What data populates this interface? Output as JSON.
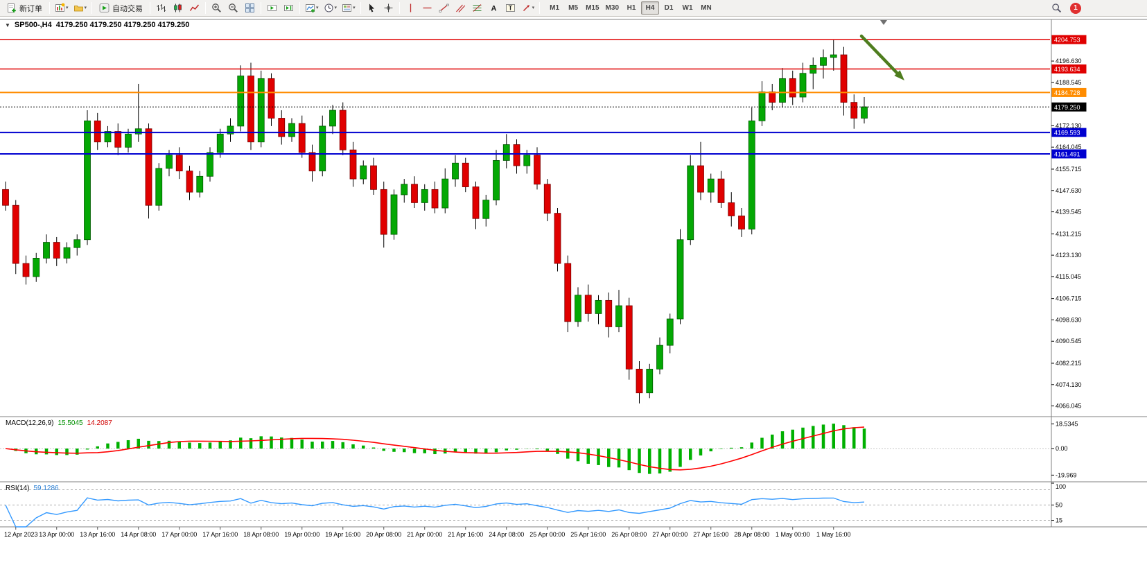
{
  "toolbar": {
    "new_order_label": "新订单",
    "autotrading_label": "自动交易",
    "timeframes": [
      "M1",
      "M5",
      "M15",
      "M30",
      "H1",
      "H4",
      "D1",
      "W1",
      "MN"
    ],
    "active_timeframe": "H4",
    "notification_count": "1"
  },
  "glyphs": {
    "dropdown_caret": "▾",
    "chart_collapse": "▼"
  },
  "chart": {
    "symbol_title": "SP500-,H4",
    "ohlc_text": "4179.250 4179.250 4179.250 4179.250",
    "current_price": "4179.250",
    "price_axis_ticks": [
      "4196.630",
      "4188.545",
      "4172.130",
      "4164.045",
      "4155.715",
      "4147.630",
      "4139.545",
      "4131.215",
      "4123.130",
      "4115.045",
      "4106.715",
      "4098.630",
      "4090.545",
      "4082.215",
      "4074.130",
      "4066.045"
    ],
    "level_lines": [
      {
        "price": 4204.753,
        "label": "4204.753",
        "color": "#e00000",
        "style": "solid",
        "width": 1.5
      },
      {
        "price": 4193.634,
        "label": "4193.634",
        "color": "#e00000",
        "style": "solid",
        "width": 1.5
      },
      {
        "price": 4184.728,
        "label": "4184.728",
        "color": "#ff8c00",
        "style": "solid",
        "width": 2
      },
      {
        "price": 4179.25,
        "label": "4179.250",
        "color": "#000000",
        "style": "dotted",
        "width": 1
      },
      {
        "price": 4169.593,
        "label": "4169.593",
        "color": "#0000d0",
        "style": "solid",
        "width": 2
      },
      {
        "price": 4161.491,
        "label": "4161.491",
        "color": "#0000d0",
        "style": "solid",
        "width": 2
      }
    ],
    "time_labels": [
      "12 Apr 2023",
      "13 Apr 00:00",
      "13 Apr 16:00",
      "14 Apr 08:00",
      "17 Apr 00:00",
      "17 Apr 16:00",
      "18 Apr 08:00",
      "19 Apr 00:00",
      "19 Apr 16:00",
      "20 Apr 08:00",
      "21 Apr 00:00",
      "21 Apr 16:00",
      "24 Apr 08:00",
      "25 Apr 00:00",
      "25 Apr 16:00",
      "26 Apr 08:00",
      "27 Apr 00:00",
      "27 Apr 16:00",
      "28 Apr 08:00",
      "1 May 00:00",
      "1 May 16:00"
    ],
    "annotation_arrow_color": "#4e7d1e"
  },
  "macd": {
    "label": "MACD(12,26,9)",
    "value_main": "15.5045",
    "value_signal": "14.2087",
    "axis_labels": [
      "18.5345",
      "0.00",
      "-19.969"
    ],
    "histogram_color": "#00B000",
    "signal_color": "#ff0000"
  },
  "rsi": {
    "label": "RSI(14)",
    "value": "59.1286",
    "axis_labels": [
      "100",
      "50",
      "15"
    ],
    "axis_values": [
      100,
      50,
      15
    ],
    "levels": [
      85,
      50,
      15
    ],
    "line_color": "#3399ff"
  },
  "chart_data": {
    "type": "candlestick",
    "symbol": "SP500-",
    "timeframe": "H4",
    "price_range": [
      4062.0,
      4212.4
    ],
    "bull_color": "#04a804",
    "bear_color": "#e00000",
    "candles": [
      [
        4148,
        4151,
        4140,
        4142
      ],
      [
        4142,
        4144,
        4116,
        4120
      ],
      [
        4120,
        4123,
        4112,
        4115
      ],
      [
        4115,
        4124,
        4113,
        4122
      ],
      [
        4122,
        4131,
        4120,
        4128
      ],
      [
        4128,
        4130,
        4119,
        4122
      ],
      [
        4122,
        4128,
        4120,
        4126
      ],
      [
        4126,
        4131,
        4123,
        4129
      ],
      [
        4129,
        4178,
        4127,
        4174
      ],
      [
        4174,
        4177,
        4163,
        4166
      ],
      [
        4166,
        4172,
        4164,
        4170
      ],
      [
        4170,
        4173,
        4161,
        4164
      ],
      [
        4164,
        4171,
        4162,
        4169
      ],
      [
        4169,
        4188,
        4166,
        4171
      ],
      [
        4171,
        4173,
        4137,
        4142
      ],
      [
        4142,
        4158,
        4140,
        4156
      ],
      [
        4156,
        4163,
        4153,
        4161
      ],
      [
        4161,
        4164,
        4152,
        4155
      ],
      [
        4155,
        4157,
        4144,
        4147
      ],
      [
        4147,
        4155,
        4145,
        4153
      ],
      [
        4153,
        4164,
        4151,
        4162
      ],
      [
        4162,
        4171,
        4160,
        4169
      ],
      [
        4169,
        4175,
        4166,
        4172
      ],
      [
        4172,
        4195,
        4170,
        4191
      ],
      [
        4191,
        4196,
        4163,
        4166
      ],
      [
        4166,
        4193,
        4164,
        4190
      ],
      [
        4190,
        4192,
        4172,
        4175
      ],
      [
        4175,
        4178,
        4165,
        4168
      ],
      [
        4168,
        4175,
        4166,
        4173
      ],
      [
        4173,
        4176,
        4160,
        4162
      ],
      [
        4162,
        4165,
        4151,
        4155
      ],
      [
        4155,
        4176,
        4153,
        4172
      ],
      [
        4172,
        4180,
        4169,
        4178
      ],
      [
        4178,
        4181,
        4161,
        4163
      ],
      [
        4163,
        4166,
        4149,
        4152
      ],
      [
        4152,
        4159,
        4150,
        4157
      ],
      [
        4157,
        4160,
        4146,
        4148
      ],
      [
        4148,
        4151,
        4126,
        4131
      ],
      [
        4131,
        4148,
        4129,
        4146
      ],
      [
        4146,
        4152,
        4143,
        4150
      ],
      [
        4150,
        4153,
        4141,
        4143
      ],
      [
        4143,
        4150,
        4140,
        4148
      ],
      [
        4148,
        4151,
        4139,
        4141
      ],
      [
        4141,
        4156,
        4139,
        4152
      ],
      [
        4152,
        4161,
        4149,
        4158
      ],
      [
        4158,
        4160,
        4147,
        4149
      ],
      [
        4149,
        4151,
        4133,
        4137
      ],
      [
        4137,
        4146,
        4134,
        4144
      ],
      [
        4144,
        4163,
        4142,
        4159
      ],
      [
        4159,
        4169,
        4156,
        4165
      ],
      [
        4165,
        4167,
        4154,
        4157
      ],
      [
        4157,
        4163,
        4154,
        4161
      ],
      [
        4161,
        4164,
        4148,
        4150
      ],
      [
        4150,
        4152,
        4136,
        4139
      ],
      [
        4139,
        4141,
        4117,
        4120
      ],
      [
        4120,
        4123,
        4094,
        4098
      ],
      [
        4098,
        4111,
        4096,
        4108
      ],
      [
        4108,
        4112,
        4098,
        4101
      ],
      [
        4101,
        4108,
        4097,
        4106
      ],
      [
        4106,
        4109,
        4092,
        4096
      ],
      [
        4096,
        4110,
        4094,
        4104
      ],
      [
        4104,
        4107,
        4076,
        4080
      ],
      [
        4080,
        4083,
        4067,
        4071
      ],
      [
        4071,
        4082,
        4069,
        4080
      ],
      [
        4080,
        4092,
        4078,
        4089
      ],
      [
        4089,
        4101,
        4086,
        4099
      ],
      [
        4099,
        4133,
        4097,
        4129
      ],
      [
        4129,
        4161,
        4127,
        4157
      ],
      [
        4157,
        4166,
        4144,
        4147
      ],
      [
        4147,
        4154,
        4143,
        4152
      ],
      [
        4152,
        4155,
        4141,
        4143
      ],
      [
        4143,
        4147,
        4134,
        4138
      ],
      [
        4138,
        4141,
        4130,
        4133
      ],
      [
        4133,
        4179,
        4131,
        4174
      ],
      [
        4174,
        4189,
        4172,
        4185
      ],
      [
        4185,
        4188,
        4178,
        4181
      ],
      [
        4181,
        4194,
        4179,
        4190
      ],
      [
        4190,
        4193,
        4180,
        4183
      ],
      [
        4183,
        4196,
        4181,
        4192
      ],
      [
        4192,
        4198,
        4186,
        4195
      ],
      [
        4195,
        4201,
        4190,
        4198
      ],
      [
        4198,
        4204.8,
        4193,
        4199
      ],
      [
        4199,
        4202,
        4176,
        4181
      ],
      [
        4181,
        4184,
        4171,
        4175
      ],
      [
        4175,
        4183,
        4173,
        4179.3
      ]
    ]
  }
}
